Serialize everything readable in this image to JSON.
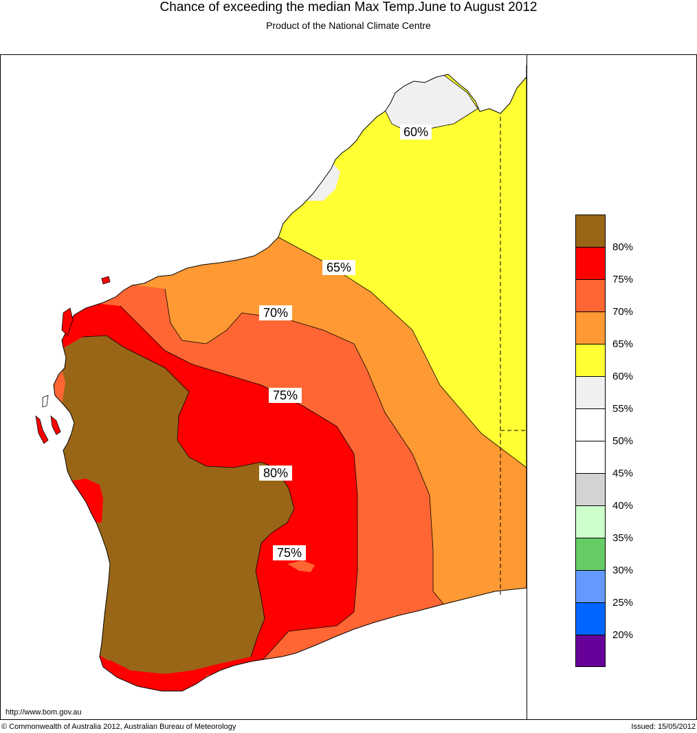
{
  "header": {
    "title": "Chance of exceeding the median Max Temp.June to August 2012",
    "subtitle": "Product of the National Climate Centre"
  },
  "map": {
    "region": "Western Australia",
    "contour_labels": [
      "60%",
      "65%",
      "70%",
      "75%",
      "80%",
      "75%"
    ],
    "colors": {
      "ocean": "#ffffff",
      "c55_60": "#f0f0f0",
      "c60_65": "#ffff33",
      "c65_70": "#ff9933",
      "c70_75": "#ff6633",
      "c75_80": "#ff0000",
      "c80_up": "#996617"
    }
  },
  "legend": {
    "swatches": [
      {
        "color": "#996617"
      },
      {
        "color": "#ff0000"
      },
      {
        "color": "#ff6633"
      },
      {
        "color": "#ff9933"
      },
      {
        "color": "#ffff33"
      },
      {
        "color": "#f0f0f0"
      },
      {
        "color": "#ffffff"
      },
      {
        "color": "#ffffff"
      },
      {
        "color": "#d3d3d3"
      },
      {
        "color": "#ccffcc"
      },
      {
        "color": "#66cc66"
      },
      {
        "color": "#6699ff"
      },
      {
        "color": "#0066ff"
      },
      {
        "color": "#660099"
      }
    ],
    "labels": [
      "80%",
      "75%",
      "70%",
      "65%",
      "60%",
      "55%",
      "50%",
      "45%",
      "40%",
      "35%",
      "30%",
      "25%",
      "20%"
    ]
  },
  "footer": {
    "url": "http://www.bom.gov.au",
    "copyright": "© Commonwealth of Australia 2012, Australian Bureau of Meteorology",
    "issued": "Issued: 15/05/2012"
  }
}
